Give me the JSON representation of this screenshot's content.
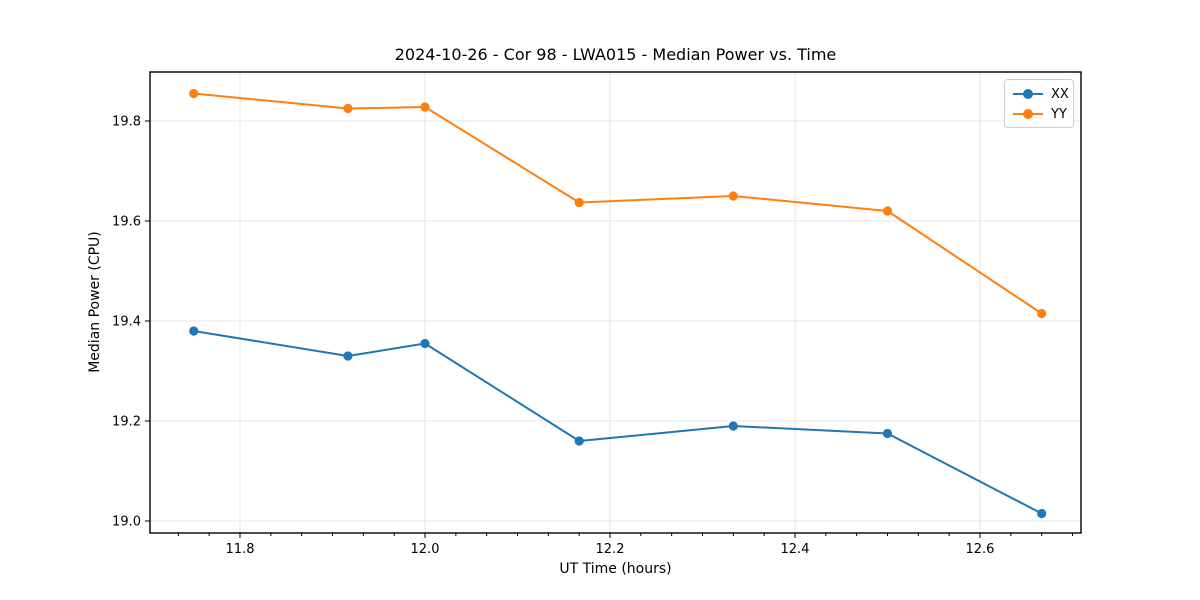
{
  "figure": {
    "background": "#ffffff"
  },
  "chart_data": {
    "type": "line",
    "title": "2024-10-26 - Cor 98 - LWA015 - Median Power vs. Time",
    "xlabel": "UT Time (hours)",
    "ylabel": "Median Power (CPU)",
    "xlim": [
      11.7027,
      12.7092
    ],
    "ylim": [
      18.976,
      19.898
    ],
    "x_ticks": [
      11.8,
      12.0,
      12.2,
      12.4,
      12.6
    ],
    "x_tick_labels": [
      "11.8",
      "12.0",
      "12.2",
      "12.4",
      "12.6"
    ],
    "x_minor_divisions": 6,
    "y_ticks": [
      19.0,
      19.2,
      19.4,
      19.6,
      19.8
    ],
    "y_tick_labels": [
      "19.0",
      "19.2",
      "19.4",
      "19.6",
      "19.8"
    ],
    "grid": true,
    "grid_color": "#e4e4e4",
    "spine_color": "#000000",
    "legend_position": "upper right",
    "x": [
      11.75,
      11.9167,
      12.0,
      12.1667,
      12.3333,
      12.5,
      12.6667
    ],
    "series": [
      {
        "name": "XX",
        "color": "#1f77b4",
        "values": [
          19.38,
          19.33,
          19.355,
          19.16,
          19.19,
          19.175,
          19.015
        ]
      },
      {
        "name": "YY",
        "color": "#ff7f0e",
        "values": [
          19.855,
          19.825,
          19.828,
          19.637,
          19.65,
          19.62,
          19.415
        ]
      }
    ]
  }
}
